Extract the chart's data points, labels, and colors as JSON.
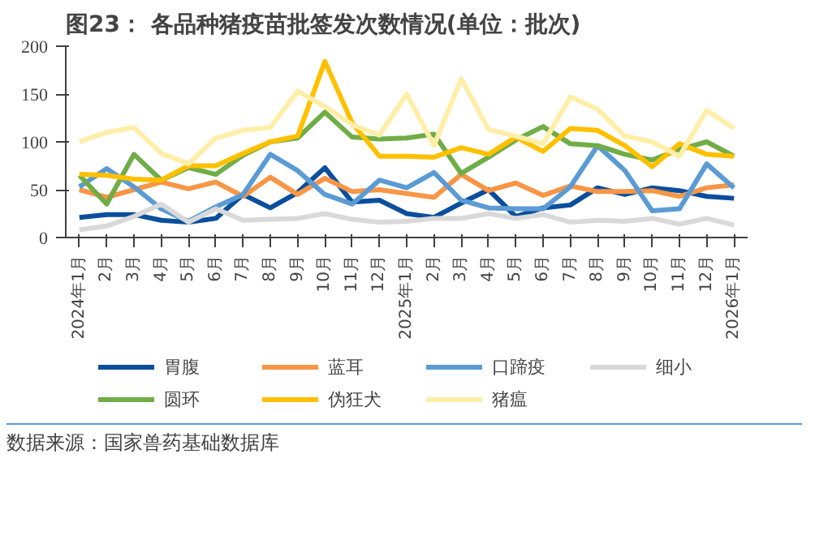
{
  "chart_data": {
    "type": "line",
    "title": "图23：    各品种猪疫苗批签发次数情况(单位：批次)",
    "categories": [
      "2024年1月",
      "2月",
      "3月",
      "4月",
      "5月",
      "6月",
      "7月",
      "8月",
      "9月",
      "10月",
      "11月",
      "12月",
      "2025年1月",
      "2月",
      "3月",
      "4月",
      "5月",
      "6月",
      "7月",
      "8月",
      "9月",
      "10月",
      "11月",
      "12月",
      "2026年1月"
    ],
    "series": [
      {
        "name": "胃腹",
        "color": "#0b4f9c",
        "values": [
          21,
          24,
          24,
          18,
          16,
          20,
          45,
          31,
          47,
          73,
          37,
          39,
          25,
          21,
          36,
          50,
          22,
          31,
          34,
          52,
          45,
          52,
          49,
          43,
          41
        ]
      },
      {
        "name": "蓝耳",
        "color": "#f79646",
        "values": [
          50,
          42,
          50,
          58,
          51,
          58,
          43,
          63,
          45,
          62,
          48,
          50,
          46,
          42,
          66,
          49,
          57,
          44,
          54,
          48,
          48,
          49,
          43,
          52,
          55
        ]
      },
      {
        "name": "口蹄疫",
        "color": "#5b9bd5",
        "values": [
          53,
          72,
          53,
          30,
          17,
          32,
          45,
          87,
          70,
          45,
          35,
          60,
          52,
          68,
          39,
          31,
          30,
          30,
          53,
          96,
          70,
          28,
          30,
          77,
          52
        ]
      },
      {
        "name": "细小",
        "color": "#d9d9d9",
        "values": [
          8,
          12,
          22,
          35,
          16,
          30,
          18,
          19,
          20,
          25,
          19,
          16,
          17,
          20,
          20,
          25,
          20,
          24,
          16,
          18,
          17,
          20,
          14,
          20,
          13
        ]
      },
      {
        "name": "圆环",
        "color": "#70ad47",
        "values": [
          65,
          35,
          87,
          60,
          73,
          66,
          86,
          100,
          104,
          131,
          105,
          103,
          104,
          108,
          67,
          84,
          102,
          116,
          98,
          96,
          87,
          81,
          92,
          100,
          85
        ]
      },
      {
        "name": "伪狂犬",
        "color": "#ffc000",
        "values": [
          66,
          65,
          61,
          60,
          75,
          75,
          88,
          100,
          106,
          184,
          120,
          85,
          85,
          84,
          94,
          87,
          105,
          90,
          114,
          112,
          96,
          74,
          98,
          87,
          85
        ]
      },
      {
        "name": "猪瘟",
        "color": "#ffeea8",
        "values": [
          100,
          110,
          115,
          88,
          77,
          104,
          112,
          115,
          153,
          137,
          118,
          107,
          150,
          96,
          166,
          113,
          106,
          98,
          147,
          134,
          106,
          100,
          85,
          133,
          114
        ]
      }
    ],
    "ylim": [
      0,
      200
    ],
    "yticks": [
      0,
      50,
      100,
      150,
      200
    ],
    "grid": false,
    "legend": "bottom",
    "annotations": [
      "数据来源：国家兽药基础数据库"
    ]
  }
}
